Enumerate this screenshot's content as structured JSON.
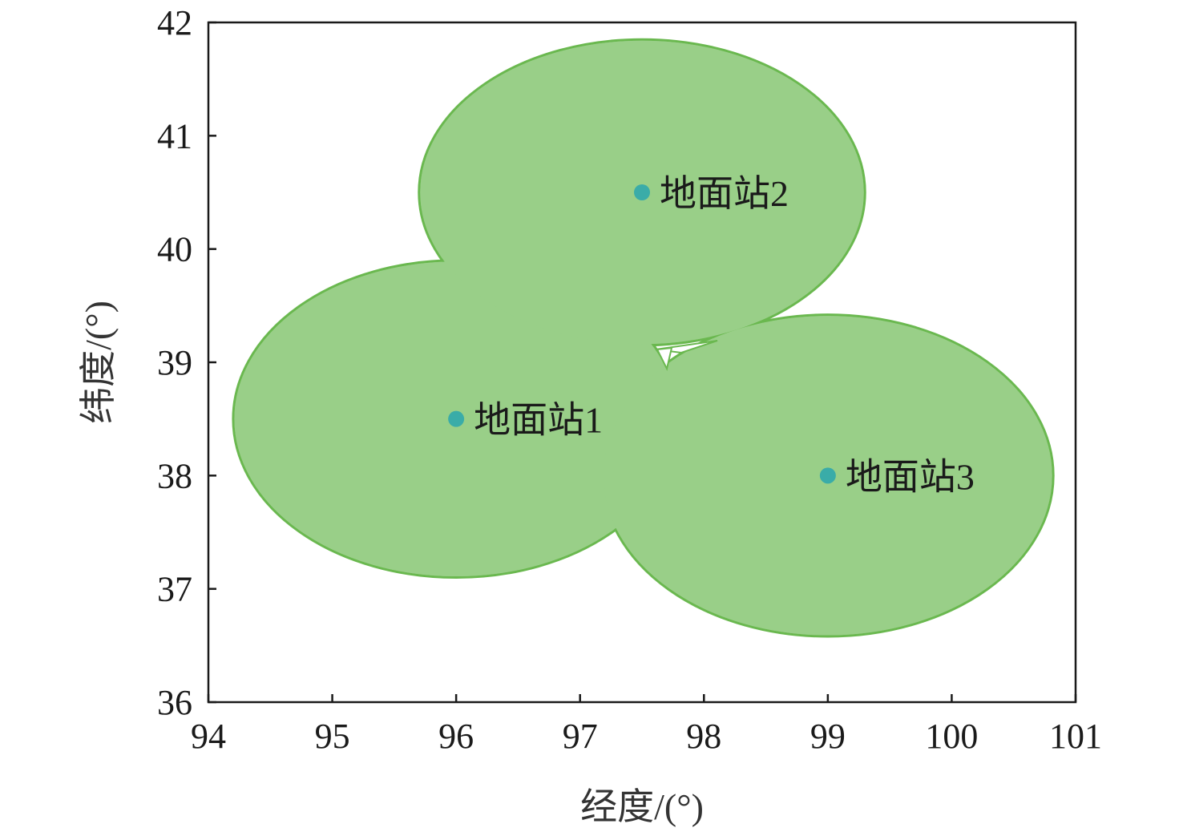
{
  "chart_data": {
    "type": "scatter",
    "title": "",
    "xlabel": "经度/(°)",
    "ylabel": "纬度/(°)",
    "xlim": [
      94,
      101
    ],
    "ylim": [
      36,
      42
    ],
    "xticks": [
      "94",
      "95",
      "96",
      "97",
      "98",
      "99",
      "100",
      "101"
    ],
    "yticks": [
      "36",
      "37",
      "38",
      "39",
      "40",
      "41",
      "42"
    ],
    "grid": false,
    "legend": "none",
    "points": [
      {
        "label": "地面站1",
        "lon": 96.0,
        "lat": 38.5,
        "coverage_semi_axes_deg": [
          1.8,
          1.4
        ]
      },
      {
        "label": "地面站2",
        "lon": 97.5,
        "lat": 40.5,
        "coverage_semi_axes_deg": [
          1.8,
          1.35
        ]
      },
      {
        "label": "地面站3",
        "lon": 99.0,
        "lat": 38.0,
        "coverage_semi_axes_deg": [
          1.82,
          1.42
        ]
      }
    ],
    "colors": {
      "coverage_fill": "#99cf88",
      "coverage_stroke": "#6ab84f",
      "station": "#3aaca8"
    }
  }
}
